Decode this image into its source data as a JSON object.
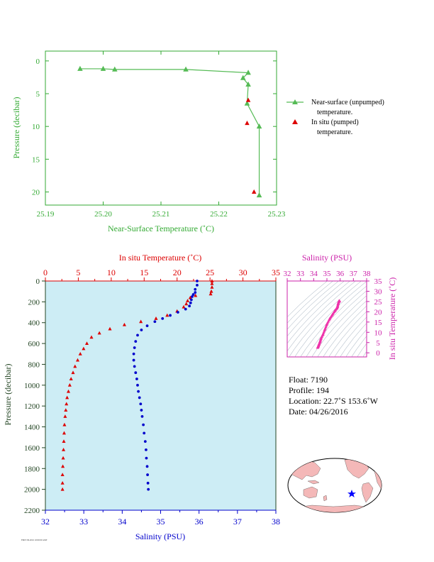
{
  "chart_data": [
    {
      "type": "line",
      "xlabel": "Near-Surface Temperature (˚C)",
      "ylabel": "Pressure (decibar)",
      "xlim": [
        25.19,
        25.23
      ],
      "ylim": [
        22,
        -1.5
      ],
      "x_ticks": [
        "25.19",
        "25.20",
        "25.21",
        "25.22",
        "25.23"
      ],
      "y_ticks": [
        "0",
        "5",
        "10",
        "15",
        "20"
      ],
      "legend_position": "right",
      "colors": {
        "axis": "#33aa33",
        "unpumped": "#55bb55",
        "pumped": "#dd0000"
      },
      "series": [
        {
          "name": "Near-surface (unpumped) temperature.",
          "marker": "triangle-line",
          "points": [
            [
              25.196,
              1.2
            ],
            [
              25.2,
              1.2
            ],
            [
              25.202,
              1.3
            ],
            [
              25.2143,
              1.3
            ],
            [
              25.2251,
              1.8
            ],
            [
              25.2242,
              2.6
            ],
            [
              25.2251,
              3.6
            ],
            [
              25.2249,
              6.5
            ],
            [
              25.227,
              10.0
            ],
            [
              25.227,
              20.5
            ]
          ]
        },
        {
          "name": "In situ (pumped) temperature.",
          "marker": "triangle",
          "points": [
            [
              25.2251,
              6.0
            ],
            [
              25.2249,
              9.5
            ],
            [
              25.2261,
              20.0
            ]
          ]
        }
      ]
    },
    {
      "type": "scatter",
      "top_axis_label": "In situ Temperature (˚C)",
      "bottom_axis_label": "Salinity (PSU)",
      "ylabel": "Pressure (decibar)",
      "temp_lim": [
        0,
        35
      ],
      "sal_lim": [
        32,
        38
      ],
      "pres_lim": [
        0,
        2200
      ],
      "temp_ticks": [
        "0",
        "5",
        "10",
        "15",
        "20",
        "25",
        "30",
        "35"
      ],
      "sal_ticks": [
        "32",
        "33",
        "34",
        "35",
        "36",
        "37",
        "38"
      ],
      "pres_ticks": [
        "0",
        "200",
        "400",
        "600",
        "800",
        "1000",
        "1200",
        "1400",
        "1600",
        "1800",
        "2000",
        "2200"
      ],
      "colors": {
        "temperature": "#dd0000",
        "salinity": "#0000cc",
        "plot_bg": "#cdedf5",
        "axis": "#224422"
      },
      "temperature_profile": [
        [
          25.3,
          0
        ],
        [
          25.3,
          25
        ],
        [
          25.3,
          60
        ],
        [
          25.2,
          100
        ],
        [
          25.1,
          125
        ],
        [
          22.8,
          140
        ],
        [
          22.0,
          160
        ],
        [
          21.6,
          190
        ],
        [
          21.4,
          220
        ],
        [
          21.0,
          250
        ],
        [
          20.0,
          290
        ],
        [
          18.5,
          330
        ],
        [
          16.8,
          360
        ],
        [
          14.5,
          390
        ],
        [
          12.0,
          420
        ],
        [
          9.8,
          460
        ],
        [
          8.2,
          500
        ],
        [
          7.0,
          540
        ],
        [
          6.3,
          600
        ],
        [
          5.8,
          650
        ],
        [
          5.3,
          700
        ],
        [
          4.9,
          760
        ],
        [
          4.5,
          820
        ],
        [
          4.2,
          880
        ],
        [
          3.9,
          940
        ],
        [
          3.7,
          1000
        ],
        [
          3.5,
          1060
        ],
        [
          3.3,
          1120
        ],
        [
          3.2,
          1180
        ],
        [
          3.1,
          1240
        ],
        [
          3.0,
          1300
        ],
        [
          2.9,
          1380
        ],
        [
          2.85,
          1460
        ],
        [
          2.8,
          1540
        ],
        [
          2.75,
          1620
        ],
        [
          2.7,
          1700
        ],
        [
          2.65,
          1780
        ],
        [
          2.6,
          1860
        ],
        [
          2.6,
          1940
        ],
        [
          2.6,
          2000
        ]
      ],
      "salinity_profile": [
        [
          35.95,
          0
        ],
        [
          35.95,
          40
        ],
        [
          35.9,
          80
        ],
        [
          35.9,
          110
        ],
        [
          35.85,
          130
        ],
        [
          35.82,
          150
        ],
        [
          35.8,
          180
        ],
        [
          35.78,
          210
        ],
        [
          35.75,
          240
        ],
        [
          35.65,
          270
        ],
        [
          35.45,
          300
        ],
        [
          35.25,
          330
        ],
        [
          35.05,
          360
        ],
        [
          34.85,
          390
        ],
        [
          34.65,
          430
        ],
        [
          34.5,
          470
        ],
        [
          34.4,
          520
        ],
        [
          34.35,
          580
        ],
        [
          34.32,
          640
        ],
        [
          34.3,
          700
        ],
        [
          34.3,
          760
        ],
        [
          34.32,
          820
        ],
        [
          34.35,
          880
        ],
        [
          34.38,
          940
        ],
        [
          34.4,
          1000
        ],
        [
          34.42,
          1060
        ],
        [
          34.45,
          1120
        ],
        [
          34.48,
          1180
        ],
        [
          34.5,
          1240
        ],
        [
          34.52,
          1300
        ],
        [
          34.55,
          1380
        ],
        [
          34.57,
          1460
        ],
        [
          34.6,
          1540
        ],
        [
          34.62,
          1620
        ],
        [
          34.63,
          1700
        ],
        [
          34.65,
          1780
        ],
        [
          34.66,
          1860
        ],
        [
          34.67,
          1940
        ],
        [
          34.68,
          2000
        ]
      ]
    },
    {
      "type": "scatter",
      "title": "Salinity (PSU)",
      "ylabel": "In situ Temperature (˚C)",
      "x_ticks": [
        "32",
        "33",
        "34",
        "35",
        "36",
        "37",
        "38"
      ],
      "y_ticks": [
        "0",
        "5",
        "10",
        "15",
        "20",
        "25",
        "30",
        "35"
      ],
      "xlim": [
        32,
        38
      ],
      "ylim": [
        -2,
        35
      ],
      "color": "#ee33aa",
      "points": [
        [
          34.3,
          2.6
        ],
        [
          34.35,
          3.3
        ],
        [
          34.4,
          4.2
        ],
        [
          34.48,
          5.5
        ],
        [
          34.55,
          7.0
        ],
        [
          34.7,
          9.0
        ],
        [
          34.85,
          11.5
        ],
        [
          35.0,
          14.0
        ],
        [
          35.2,
          16.5
        ],
        [
          35.4,
          18.5
        ],
        [
          35.6,
          20.5
        ],
        [
          35.75,
          21.8
        ],
        [
          35.8,
          22.6
        ],
        [
          35.85,
          24.0
        ],
        [
          35.9,
          25.1
        ],
        [
          35.95,
          25.3
        ]
      ]
    }
  ],
  "info": {
    "float": "Float:  7190",
    "profile": "Profile:  194",
    "location": "Location:  22.7˚S  153.6˚W",
    "date": "Date:  04/26/2016"
  },
  "map": {
    "marker_color": "#0000ff",
    "land_color": "#f4b8b8",
    "ocean_color": "#ffffff"
  },
  "footer": {
    "tag": "FM07.09.2016 10:00:00 GMT"
  }
}
